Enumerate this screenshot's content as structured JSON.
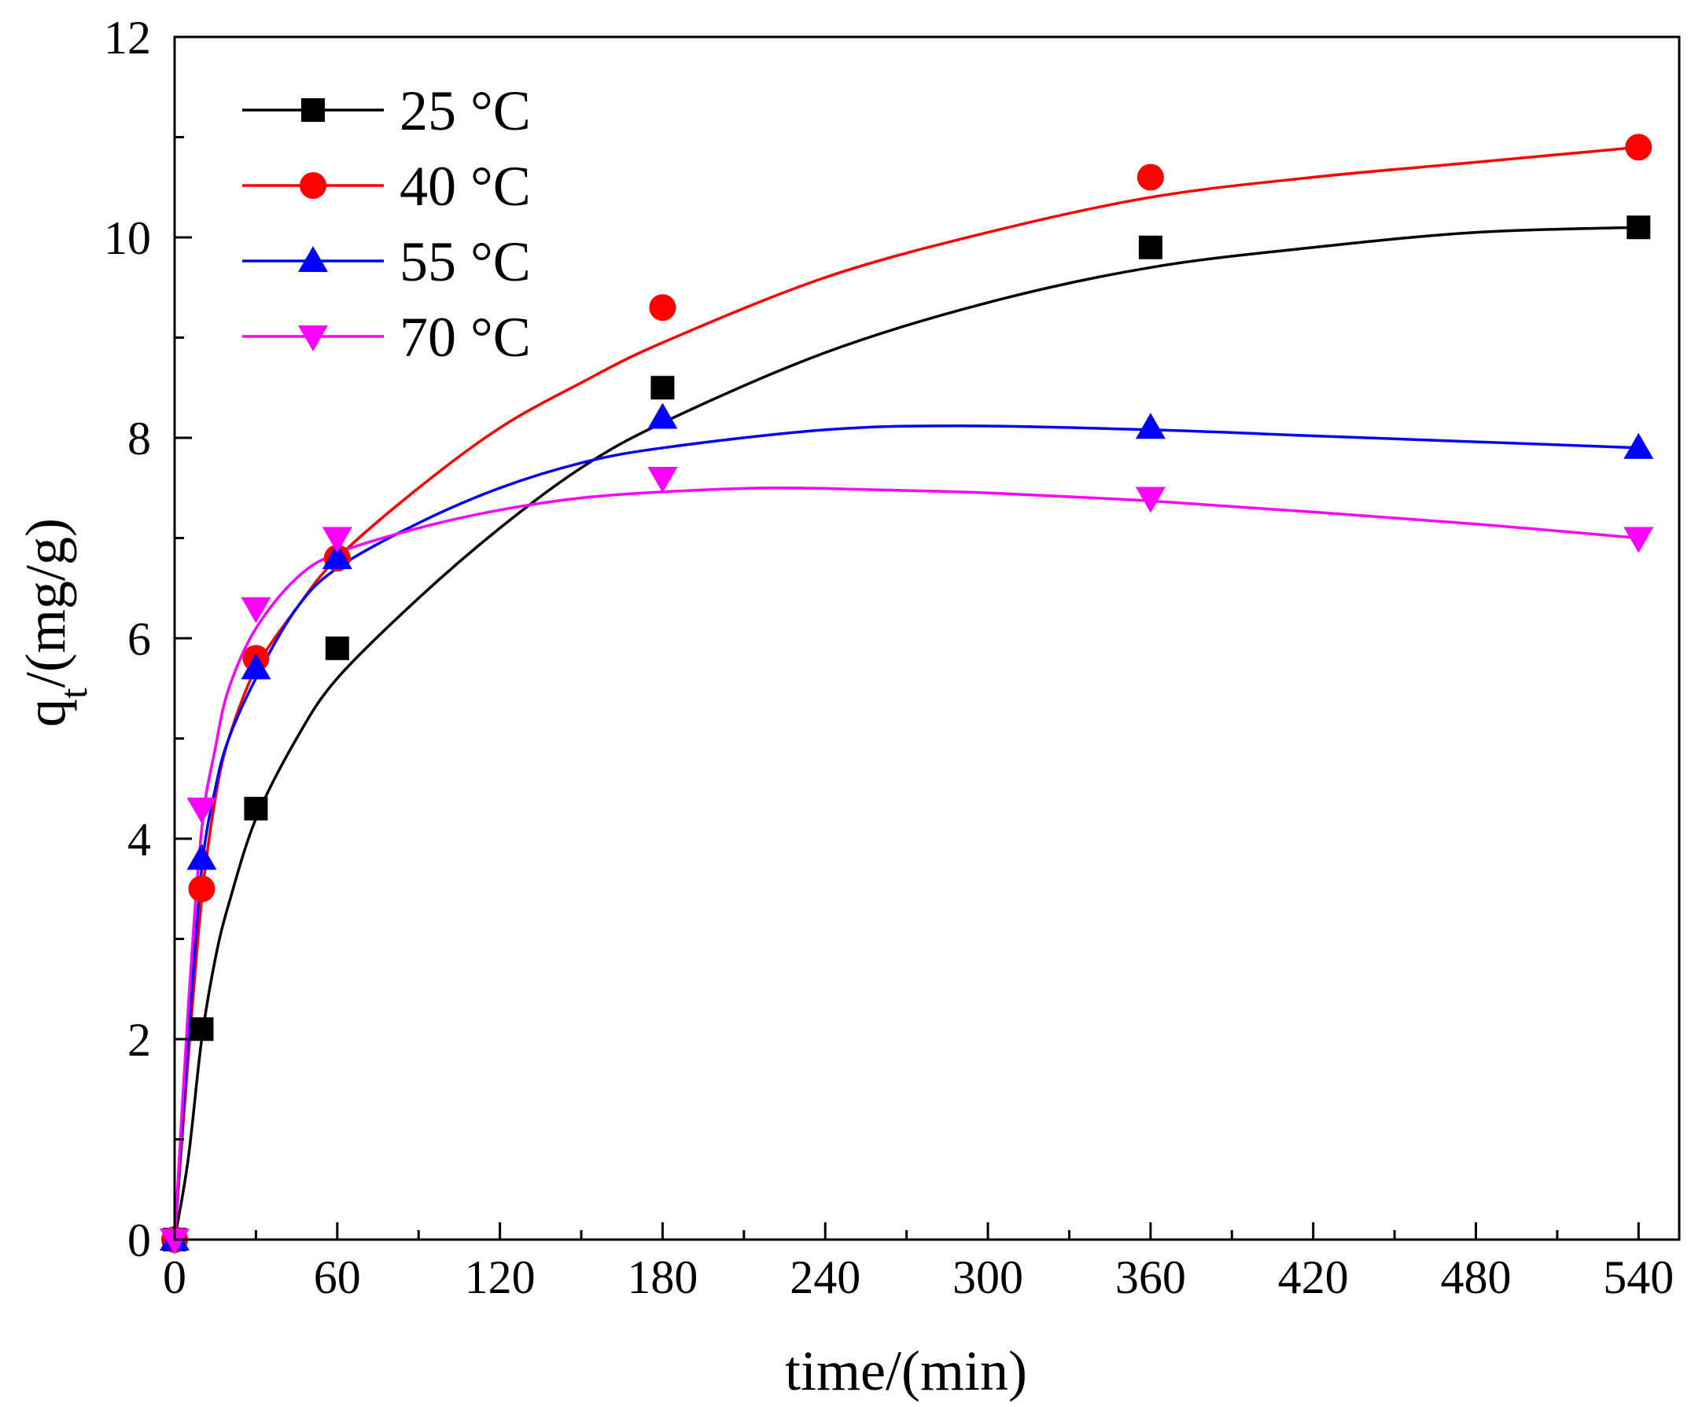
{
  "chart_data": {
    "type": "scatter",
    "title": "",
    "xlabel": "time/(min)",
    "ylabel_main": "q",
    "ylabel_sub": "t",
    "ylabel_rest": "/(mg/g)",
    "xlim": [
      0,
      555
    ],
    "ylim": [
      0,
      12
    ],
    "xticks": [
      0,
      60,
      120,
      180,
      240,
      300,
      360,
      420,
      480,
      540
    ],
    "xminor": [
      30,
      90,
      150,
      210,
      270,
      330,
      390,
      450,
      510
    ],
    "yticks": [
      0,
      2,
      4,
      6,
      8,
      10,
      12
    ],
    "yminor": [
      1,
      3,
      5,
      7,
      9,
      11
    ],
    "legend_position": "top-left",
    "series": [
      {
        "name": "25 °C",
        "color": "#000000",
        "marker": "square",
        "points": [
          [
            0,
            0
          ],
          [
            10,
            2.1
          ],
          [
            30,
            4.3
          ],
          [
            60,
            5.9
          ],
          [
            180,
            8.5
          ],
          [
            360,
            9.9
          ],
          [
            540,
            10.1
          ]
        ],
        "fit": [
          [
            0,
            0
          ],
          [
            5,
            0.8
          ],
          [
            10,
            2.0
          ],
          [
            15,
            2.8
          ],
          [
            20,
            3.35
          ],
          [
            30,
            4.2
          ],
          [
            45,
            5.0
          ],
          [
            60,
            5.6
          ],
          [
            90,
            6.4
          ],
          [
            120,
            7.1
          ],
          [
            150,
            7.7
          ],
          [
            180,
            8.15
          ],
          [
            240,
            8.85
          ],
          [
            300,
            9.35
          ],
          [
            360,
            9.7
          ],
          [
            420,
            9.9
          ],
          [
            480,
            10.05
          ],
          [
            540,
            10.1
          ]
        ]
      },
      {
        "name": "40 °C",
        "color": "#ff0000",
        "marker": "circle",
        "points": [
          [
            0,
            0
          ],
          [
            10,
            3.5
          ],
          [
            30,
            5.8
          ],
          [
            60,
            6.8
          ],
          [
            180,
            9.3
          ],
          [
            360,
            10.6
          ],
          [
            540,
            10.9
          ]
        ],
        "fit": [
          [
            0,
            0
          ],
          [
            5,
            1.8
          ],
          [
            10,
            3.4
          ],
          [
            15,
            4.4
          ],
          [
            20,
            5.0
          ],
          [
            30,
            5.7
          ],
          [
            45,
            6.3
          ],
          [
            60,
            6.8
          ],
          [
            90,
            7.5
          ],
          [
            120,
            8.1
          ],
          [
            150,
            8.55
          ],
          [
            180,
            8.95
          ],
          [
            240,
            9.6
          ],
          [
            300,
            10.05
          ],
          [
            360,
            10.4
          ],
          [
            420,
            10.6
          ],
          [
            480,
            10.75
          ],
          [
            540,
            10.9
          ]
        ]
      },
      {
        "name": "55 °C",
        "color": "#0000ff",
        "marker": "triangle-up",
        "points": [
          [
            0,
            0
          ],
          [
            10,
            3.8
          ],
          [
            30,
            5.7
          ],
          [
            60,
            6.8
          ],
          [
            180,
            8.2
          ],
          [
            360,
            8.1
          ],
          [
            540,
            7.9
          ]
        ],
        "fit": [
          [
            0,
            0
          ],
          [
            5,
            2.0
          ],
          [
            10,
            3.7
          ],
          [
            15,
            4.5
          ],
          [
            20,
            5.0
          ],
          [
            30,
            5.6
          ],
          [
            45,
            6.3
          ],
          [
            60,
            6.7
          ],
          [
            90,
            7.15
          ],
          [
            120,
            7.5
          ],
          [
            150,
            7.75
          ],
          [
            180,
            7.9
          ],
          [
            240,
            8.08
          ],
          [
            290,
            8.12
          ],
          [
            360,
            8.08
          ],
          [
            420,
            8.02
          ],
          [
            480,
            7.96
          ],
          [
            540,
            7.9
          ]
        ]
      },
      {
        "name": "70 °C",
        "color": "#ff00ff",
        "marker": "triangle-down",
        "points": [
          [
            0,
            0
          ],
          [
            10,
            4.3
          ],
          [
            30,
            6.3
          ],
          [
            60,
            7.0
          ],
          [
            180,
            7.6
          ],
          [
            360,
            7.4
          ],
          [
            540,
            7.0
          ]
        ],
        "fit": [
          [
            0,
            0
          ],
          [
            5,
            2.3
          ],
          [
            10,
            4.1
          ],
          [
            15,
            4.9
          ],
          [
            20,
            5.5
          ],
          [
            30,
            6.1
          ],
          [
            45,
            6.6
          ],
          [
            60,
            6.85
          ],
          [
            90,
            7.1
          ],
          [
            120,
            7.28
          ],
          [
            150,
            7.4
          ],
          [
            180,
            7.46
          ],
          [
            220,
            7.5
          ],
          [
            260,
            7.48
          ],
          [
            300,
            7.45
          ],
          [
            360,
            7.37
          ],
          [
            420,
            7.26
          ],
          [
            480,
            7.14
          ],
          [
            540,
            7.0
          ]
        ]
      }
    ]
  }
}
